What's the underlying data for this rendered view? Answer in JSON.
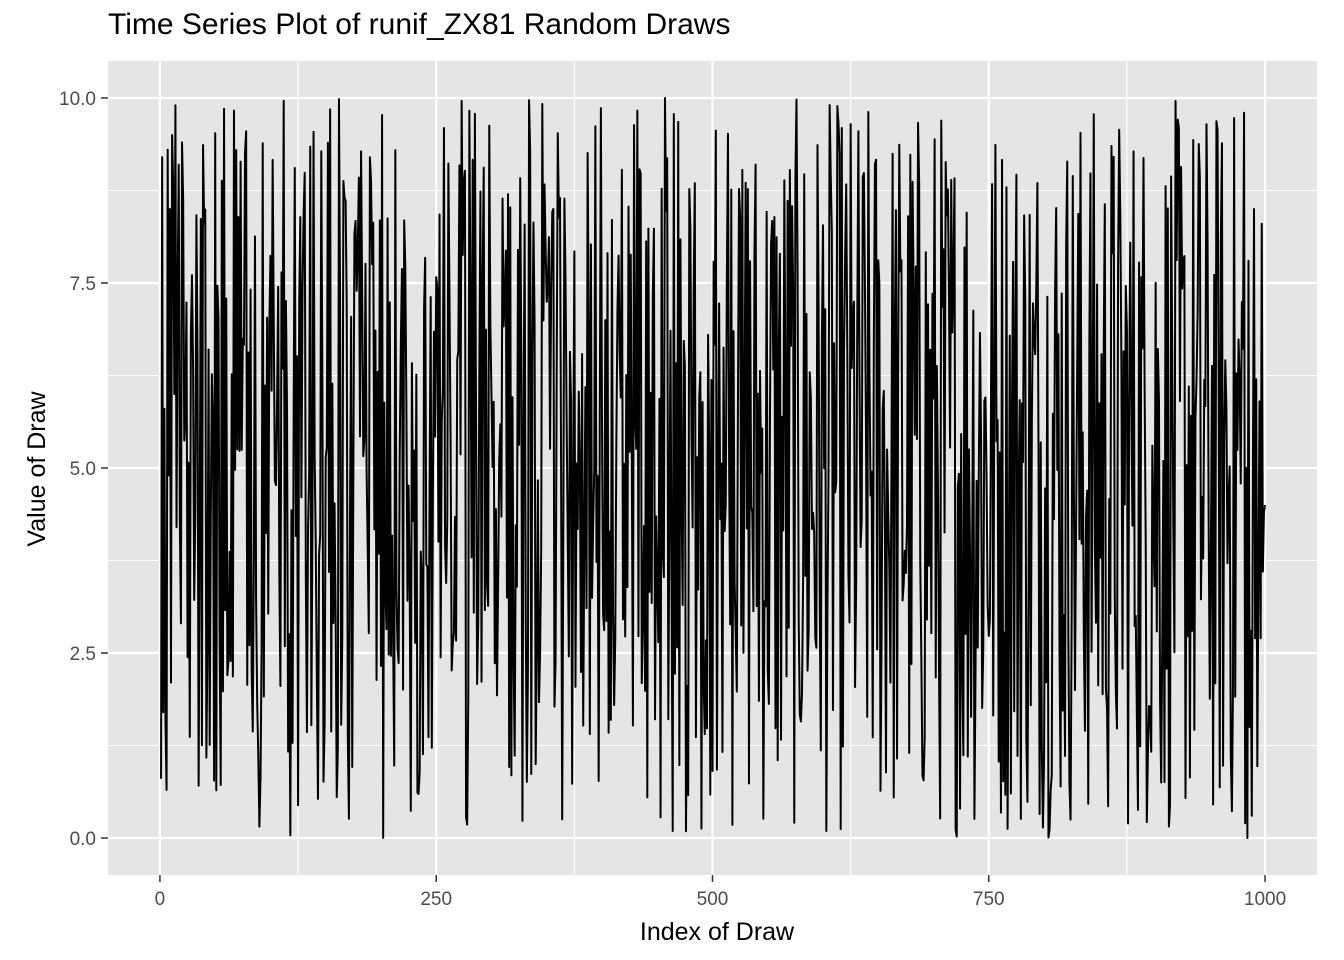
{
  "chart_data": {
    "type": "line",
    "title": "Time Series Plot of runif_ZX81 Random Draws",
    "xlabel": "Index of Draw",
    "ylabel": "Value of Draw",
    "xlim": [
      -47,
      1047
    ],
    "ylim": [
      -0.5,
      10.5
    ],
    "x_ticks": [
      0,
      250,
      500,
      750,
      1000
    ],
    "x_tick_labels": [
      "0",
      "250",
      "500",
      "750",
      "1000"
    ],
    "y_ticks": [
      0.0,
      2.5,
      5.0,
      7.5,
      10.0
    ],
    "y_tick_labels": [
      "0.0",
      "2.5",
      "5.0",
      "7.5",
      "10.0"
    ],
    "grid": true,
    "legend": "none",
    "colors": {
      "panel": "#e5e5e5",
      "grid": "#ffffff",
      "line": "#000000",
      "tick_text": "#4d4d4d"
    },
    "series": [
      {
        "n_points": 1000,
        "x_start": 1,
        "x_end": 1000,
        "value_min": 0.0,
        "value_max": 10.0,
        "distribution": "uniform",
        "first_values": [
          0.8,
          9.2,
          1.7,
          5.8,
          1.6,
          0.65,
          9.3,
          4.9,
          8.5,
          2.1,
          9.5,
          8.8,
          6.0,
          9.9,
          4.2,
          7.4,
          9.1,
          4.3,
          2.9,
          9.4
        ],
        "last_values": [
          9.8,
          0.2,
          5.0,
          0.0,
          7.8,
          1.5,
          2.8,
          0.3,
          4.9,
          8.5,
          2.7,
          6.2,
          0.97,
          3.6,
          5.9,
          2.7,
          8.3,
          3.6,
          4.4,
          4.5
        ]
      }
    ]
  }
}
